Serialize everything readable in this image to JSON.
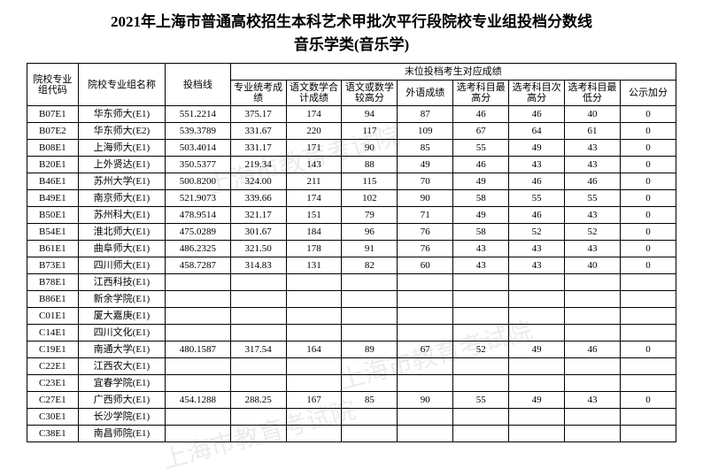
{
  "title": {
    "line1": "2021年上海市普通高校招生本科艺术甲批次平行段院校专业组投档分数线",
    "line2": "音乐学类(音乐学)"
  },
  "headers": {
    "code": "院校专业组代码",
    "name": "院校专业组名称",
    "cutoff": "投档线",
    "group": "末位投档考生对应成绩",
    "sub": [
      "专业统考成绩",
      "语文数学合计成绩",
      "语文或数学较高分",
      "外语成绩",
      "选考科目最高分",
      "选考科目次高分",
      "选考科目最低分",
      "公示加分"
    ]
  },
  "rows": [
    {
      "code": "B07E1",
      "name": "华东师大(E1)",
      "cutoff": "551.2214",
      "c": [
        "375.17",
        "174",
        "94",
        "87",
        "46",
        "46",
        "40",
        "0"
      ]
    },
    {
      "code": "B07E2",
      "name": "华东师大(E2)",
      "cutoff": "539.3789",
      "c": [
        "331.67",
        "220",
        "117",
        "109",
        "67",
        "64",
        "61",
        "0"
      ]
    },
    {
      "code": "B08E1",
      "name": "上海师大(E1)",
      "cutoff": "503.4014",
      "c": [
        "331.17",
        "171",
        "90",
        "85",
        "55",
        "49",
        "43",
        "0"
      ]
    },
    {
      "code": "B20E1",
      "name": "上外贤达(E1)",
      "cutoff": "350.5377",
      "c": [
        "219.34",
        "143",
        "88",
        "49",
        "46",
        "43",
        "43",
        "0"
      ]
    },
    {
      "code": "B46E1",
      "name": "苏州大学(E1)",
      "cutoff": "500.8200",
      "c": [
        "324.00",
        "211",
        "115",
        "70",
        "49",
        "46",
        "46",
        "0"
      ]
    },
    {
      "code": "B49E1",
      "name": "南京师大(E1)",
      "cutoff": "521.9073",
      "c": [
        "339.66",
        "174",
        "102",
        "90",
        "58",
        "55",
        "55",
        "0"
      ]
    },
    {
      "code": "B50E1",
      "name": "苏州科大(E1)",
      "cutoff": "478.9514",
      "c": [
        "321.17",
        "151",
        "79",
        "71",
        "49",
        "46",
        "43",
        "0"
      ]
    },
    {
      "code": "B54E1",
      "name": "淮北师大(E1)",
      "cutoff": "475.0289",
      "c": [
        "301.67",
        "184",
        "96",
        "76",
        "58",
        "52",
        "52",
        "0"
      ]
    },
    {
      "code": "B61E1",
      "name": "曲阜师大(E1)",
      "cutoff": "486.2325",
      "c": [
        "321.50",
        "178",
        "91",
        "76",
        "43",
        "43",
        "43",
        "0"
      ]
    },
    {
      "code": "B73E1",
      "name": "四川师大(E1)",
      "cutoff": "458.7287",
      "c": [
        "314.83",
        "131",
        "82",
        "60",
        "43",
        "43",
        "40",
        "0"
      ]
    },
    {
      "code": "B78E1",
      "name": "江西科技(E1)",
      "cutoff": "",
      "c": [
        "",
        "",
        "",
        "",
        "",
        "",
        "",
        ""
      ]
    },
    {
      "code": "B86E1",
      "name": "新余学院(E1)",
      "cutoff": "",
      "c": [
        "",
        "",
        "",
        "",
        "",
        "",
        "",
        ""
      ]
    },
    {
      "code": "C01E1",
      "name": "厦大嘉庚(E1)",
      "cutoff": "",
      "c": [
        "",
        "",
        "",
        "",
        "",
        "",
        "",
        ""
      ]
    },
    {
      "code": "C14E1",
      "name": "四川文化(E1)",
      "cutoff": "",
      "c": [
        "",
        "",
        "",
        "",
        "",
        "",
        "",
        ""
      ]
    },
    {
      "code": "C19E1",
      "name": "南通大学(E1)",
      "cutoff": "480.1587",
      "c": [
        "317.54",
        "164",
        "89",
        "67",
        "52",
        "49",
        "46",
        "0"
      ]
    },
    {
      "code": "C22E1",
      "name": "江西农大(E1)",
      "cutoff": "",
      "c": [
        "",
        "",
        "",
        "",
        "",
        "",
        "",
        ""
      ]
    },
    {
      "code": "C23E1",
      "name": "宜春学院(E1)",
      "cutoff": "",
      "c": [
        "",
        "",
        "",
        "",
        "",
        "",
        "",
        ""
      ]
    },
    {
      "code": "C27E1",
      "name": "广西师大(E1)",
      "cutoff": "454.1288",
      "c": [
        "288.25",
        "167",
        "85",
        "90",
        "55",
        "49",
        "43",
        "0"
      ]
    },
    {
      "code": "C30E1",
      "name": "长沙学院(E1)",
      "cutoff": "",
      "c": [
        "",
        "",
        "",
        "",
        "",
        "",
        "",
        ""
      ]
    },
    {
      "code": "C38E1",
      "name": "南昌师院(E1)",
      "cutoff": "",
      "c": [
        "",
        "",
        "",
        "",
        "",
        "",
        "",
        ""
      ]
    }
  ],
  "watermark": "上海市教育考试院"
}
